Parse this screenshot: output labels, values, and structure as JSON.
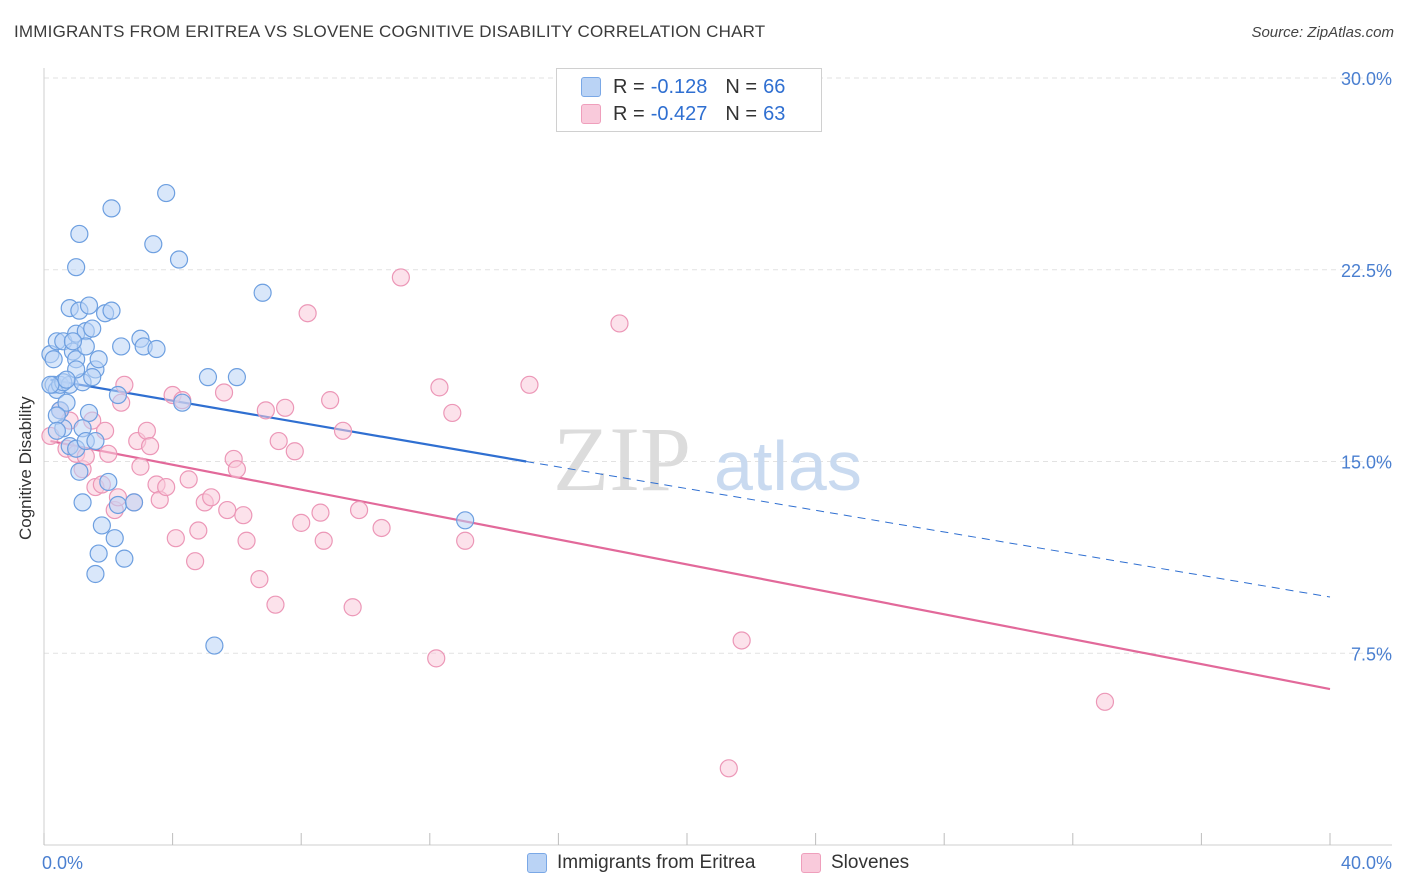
{
  "title": "IMMIGRANTS FROM ERITREA VS SLOVENE COGNITIVE DISABILITY CORRELATION CHART",
  "source": "Source: ZipAtlas.com",
  "watermark": {
    "zip": "ZIP",
    "atlas": "atlas"
  },
  "legend": {
    "rows": [
      {
        "r_label": "R =",
        "r_value": "-0.128",
        "n_label": "N =",
        "n_value": "66"
      },
      {
        "r_label": "R =",
        "r_value": "-0.427",
        "n_label": "N =",
        "n_value": "63"
      }
    ]
  },
  "bottom_legend": {
    "series1": "Immigrants from Eritrea",
    "series2": "Slovenes"
  },
  "colors": {
    "blue_fill": "#bad3f5",
    "blue_stroke": "#6d9fe0",
    "blue_line": "#2f6fd1",
    "pink_fill": "#f9cadb",
    "pink_stroke": "#ec97b7",
    "pink_line": "#e2699a",
    "axis_text": "#4a7fd0",
    "grid": "#e2e2e2"
  },
  "chart_data": {
    "type": "scatter",
    "title": "IMMIGRANTS FROM ERITREA VS SLOVENE COGNITIVE DISABILITY CORRELATION CHART",
    "xlabel": "",
    "ylabel": "Cognitive Disability",
    "xlim": [
      0,
      40
    ],
    "ylim": [
      0,
      30
    ],
    "x_tick_labels": [
      "0.0%",
      "40.0%"
    ],
    "y_ticks": [
      7.5,
      15.0,
      22.5,
      30.0
    ],
    "y_tick_labels": [
      "7.5%",
      "15.0%",
      "22.5%",
      "30.0%"
    ],
    "grid": true,
    "series": [
      {
        "name": "Immigrants from Eritrea",
        "R": -0.128,
        "N": 66,
        "trend": {
          "x0": 0.2,
          "y0": 18.2,
          "x1": 15.0,
          "y1": 15.0,
          "dashed_to_x": 40.0,
          "dashed_to_y": 9.7
        },
        "points": [
          [
            0.2,
            19.2
          ],
          [
            0.3,
            19.0
          ],
          [
            0.3,
            18.0
          ],
          [
            0.4,
            17.8
          ],
          [
            0.5,
            18.0
          ],
          [
            0.4,
            19.7
          ],
          [
            0.6,
            19.7
          ],
          [
            0.8,
            18.0
          ],
          [
            0.9,
            19.3
          ],
          [
            1.0,
            19.0
          ],
          [
            0.8,
            21.0
          ],
          [
            1.0,
            22.6
          ],
          [
            1.1,
            23.9
          ],
          [
            1.0,
            20.0
          ],
          [
            1.1,
            20.9
          ],
          [
            1.3,
            20.1
          ],
          [
            1.4,
            21.1
          ],
          [
            1.5,
            20.2
          ],
          [
            1.3,
            19.5
          ],
          [
            1.6,
            18.6
          ],
          [
            1.7,
            19.0
          ],
          [
            1.9,
            20.8
          ],
          [
            2.1,
            20.9
          ],
          [
            2.1,
            24.9
          ],
          [
            0.5,
            17.0
          ],
          [
            0.6,
            16.3
          ],
          [
            0.7,
            17.3
          ],
          [
            0.4,
            16.8
          ],
          [
            0.8,
            15.6
          ],
          [
            1.0,
            15.5
          ],
          [
            1.2,
            16.3
          ],
          [
            1.3,
            15.8
          ],
          [
            1.1,
            14.6
          ],
          [
            1.2,
            13.4
          ],
          [
            1.6,
            15.8
          ],
          [
            1.8,
            12.5
          ],
          [
            1.7,
            11.4
          ],
          [
            1.6,
            10.6
          ],
          [
            2.2,
            12.0
          ],
          [
            2.5,
            11.2
          ],
          [
            2.3,
            13.3
          ],
          [
            2.8,
            13.4
          ],
          [
            2.3,
            17.6
          ],
          [
            3.0,
            19.8
          ],
          [
            3.1,
            19.5
          ],
          [
            3.4,
            23.5
          ],
          [
            3.5,
            19.4
          ],
          [
            3.8,
            25.5
          ],
          [
            4.2,
            22.9
          ],
          [
            4.3,
            17.3
          ],
          [
            5.1,
            18.3
          ],
          [
            6.0,
            18.3
          ],
          [
            6.8,
            21.6
          ],
          [
            13.1,
            12.7
          ],
          [
            5.3,
            7.8
          ],
          [
            1.2,
            18.1
          ],
          [
            1.0,
            18.6
          ],
          [
            0.6,
            18.1
          ],
          [
            0.2,
            18.0
          ],
          [
            0.4,
            16.2
          ],
          [
            2.0,
            14.2
          ],
          [
            1.4,
            16.9
          ],
          [
            0.9,
            19.7
          ],
          [
            2.4,
            19.5
          ],
          [
            0.7,
            18.2
          ],
          [
            1.5,
            18.3
          ]
        ]
      },
      {
        "name": "Slovenes",
        "R": -0.427,
        "N": 63,
        "trend": {
          "x0": 0.2,
          "y0": 15.8,
          "x1": 40.0,
          "y1": 6.1
        },
        "points": [
          [
            0.2,
            16.0
          ],
          [
            0.5,
            17.0
          ],
          [
            0.7,
            15.5
          ],
          [
            0.8,
            16.6
          ],
          [
            1.0,
            15.3
          ],
          [
            1.2,
            14.7
          ],
          [
            1.3,
            15.2
          ],
          [
            1.5,
            16.6
          ],
          [
            1.6,
            14.0
          ],
          [
            1.8,
            14.1
          ],
          [
            1.9,
            16.2
          ],
          [
            2.0,
            15.3
          ],
          [
            2.2,
            13.1
          ],
          [
            2.4,
            17.3
          ],
          [
            2.5,
            18.0
          ],
          [
            2.8,
            13.4
          ],
          [
            2.9,
            15.8
          ],
          [
            3.0,
            14.8
          ],
          [
            3.2,
            16.2
          ],
          [
            3.3,
            15.6
          ],
          [
            3.5,
            14.1
          ],
          [
            3.6,
            13.5
          ],
          [
            3.8,
            14.0
          ],
          [
            4.0,
            17.6
          ],
          [
            4.1,
            12.0
          ],
          [
            4.3,
            17.4
          ],
          [
            4.5,
            14.3
          ],
          [
            4.7,
            11.1
          ],
          [
            4.8,
            12.3
          ],
          [
            5.0,
            13.4
          ],
          [
            5.2,
            13.6
          ],
          [
            5.6,
            17.7
          ],
          [
            5.7,
            13.1
          ],
          [
            5.9,
            15.1
          ],
          [
            6.0,
            14.7
          ],
          [
            6.2,
            12.9
          ],
          [
            6.3,
            11.9
          ],
          [
            6.7,
            10.4
          ],
          [
            6.9,
            17.0
          ],
          [
            7.2,
            9.4
          ],
          [
            7.3,
            15.8
          ],
          [
            7.5,
            17.1
          ],
          [
            7.8,
            15.4
          ],
          [
            8.0,
            12.6
          ],
          [
            8.2,
            20.8
          ],
          [
            8.6,
            13.0
          ],
          [
            8.7,
            11.9
          ],
          [
            8.9,
            17.4
          ],
          [
            9.3,
            16.2
          ],
          [
            9.6,
            9.3
          ],
          [
            9.8,
            13.1
          ],
          [
            10.5,
            12.4
          ],
          [
            11.1,
            22.2
          ],
          [
            12.2,
            7.3
          ],
          [
            12.3,
            17.9
          ],
          [
            12.7,
            16.9
          ],
          [
            13.1,
            11.9
          ],
          [
            15.1,
            18.0
          ],
          [
            17.9,
            20.4
          ],
          [
            21.3,
            3.0
          ],
          [
            21.7,
            8.0
          ],
          [
            33.0,
            5.6
          ],
          [
            2.3,
            13.6
          ]
        ]
      }
    ]
  }
}
